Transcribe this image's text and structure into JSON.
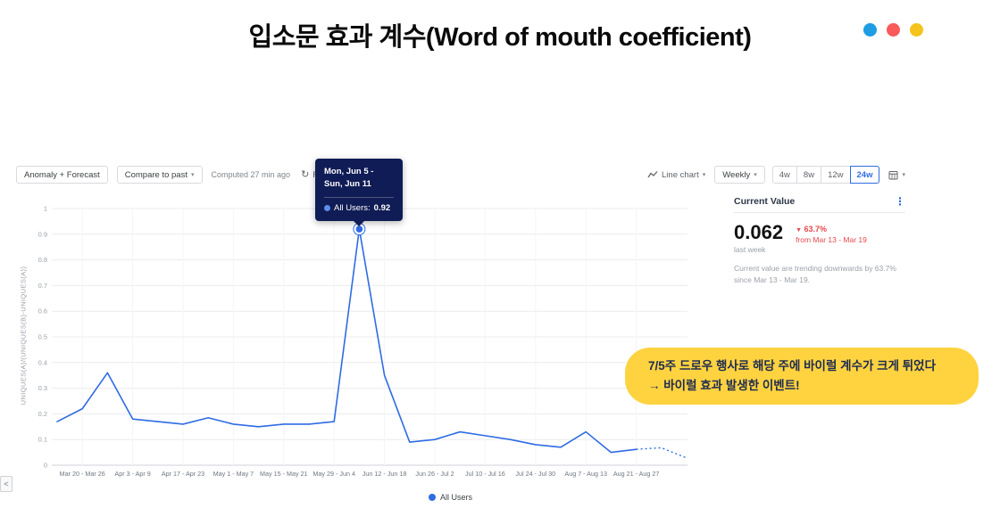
{
  "page": {
    "title": "입소문 효과 계수(Word of mouth coefficient)"
  },
  "decorations": {
    "dots": [
      {
        "name": "blue-dot",
        "color": "#1e9de3"
      },
      {
        "name": "red-dot",
        "color": "#fa5a5a"
      },
      {
        "name": "yellow-dot",
        "color": "#f4c41c"
      }
    ]
  },
  "toolbar": {
    "anomaly_forecast_label": "Anomaly + Forecast",
    "compare_to_past_label": "Compare to past",
    "computed_status": "Computed 27 min ago",
    "refresh_label": "Refresh"
  },
  "chart_controls": {
    "chart_type_label": "Line chart",
    "granularity_label": "Weekly",
    "ranges": [
      "4w",
      "8w",
      "12w",
      "24w"
    ],
    "selected_range": "24w"
  },
  "tooltip": {
    "date_line1": "Mon, Jun 5 -",
    "date_line2": "Sun, Jun 11",
    "series_label": "All Users:",
    "value": "0.92"
  },
  "legend": {
    "label": "All Users"
  },
  "current_value_panel": {
    "title": "Current Value",
    "value": "0.062",
    "period": "last week",
    "change_direction": "down",
    "change": "63.7%",
    "change_from": "from Mar 13 - Mar 19",
    "description": "Current value are trending downwards by 63.7% since Mar 13 - Mar 19."
  },
  "annotation": {
    "line1": "7/5주 드로우 행사로 해당 주에 바이럴 계수가 크게 튀었다",
    "line2": "→ 바이럴 효과 발생한 이벤트!"
  },
  "nav": {
    "back_label": "<"
  },
  "colors": {
    "line": "#2f6be4",
    "selected_range": "#2f6be4",
    "negative": "#e5484d",
    "annotation_bg": "#ffd340",
    "tooltip_bg": "#101c55"
  },
  "chart_data": {
    "type": "line",
    "title": "입소문 효과 계수(Word of mouth coefficient)",
    "xlabel": "",
    "ylabel": "UNIQUES(A)/(UNIQUES(B)-UNIQUES(A))",
    "ylim": [
      0,
      1
    ],
    "yticks": [
      0,
      0.1,
      0.2,
      0.3,
      0.4,
      0.5,
      0.6,
      0.7,
      0.8,
      0.9,
      1
    ],
    "grid": true,
    "legend_position": "bottom",
    "granularity": "weekly",
    "x_weeks": [
      "Mar 13 - Mar 19",
      "Mar 20 - Mar 26",
      "Mar 27 - Apr 2",
      "Apr 3 - Apr 9",
      "Apr 10 - Apr 16",
      "Apr 17 - Apr 23",
      "Apr 24 - Apr 30",
      "May 1 - May 7",
      "May 8 - May 14",
      "May 15 - May 21",
      "May 22 - May 28",
      "May 29 - Jun 4",
      "Jun 5 - Jun 11",
      "Jun 12 - Jun 18",
      "Jun 19 - Jun 25",
      "Jun 26 - Jul 2",
      "Jul 3 - Jul 9",
      "Jul 10 - Jul 16",
      "Jul 17 - Jul 23",
      "Jul 24 - Jul 30",
      "Jul 31 - Aug 6",
      "Aug 7 - Aug 13",
      "Aug 14 - Aug 20",
      "Aug 21 - Aug 27"
    ],
    "x_tick_labels": [
      "Mar 20 - Mar 26",
      "Apr 3 - Apr 9",
      "Apr 17 - Apr 23",
      "May 1 - May 7",
      "May 15 - May 21",
      "May 29 - Jun 4",
      "Jun 12 - Jun 18",
      "Jun 26 - Jul 2",
      "Jul 10 - Jul 16",
      "Jul 24 - Jul 30",
      "Aug 7 - Aug 13",
      "Aug 21 - Aug 27"
    ],
    "series": [
      {
        "name": "All Users",
        "color": "#2f6be4",
        "values": [
          0.17,
          0.22,
          0.36,
          0.18,
          0.17,
          0.16,
          0.185,
          0.16,
          0.15,
          0.16,
          0.16,
          0.17,
          0.92,
          0.35,
          0.09,
          0.1,
          0.13,
          0.115,
          0.1,
          0.08,
          0.07,
          0.13,
          0.05,
          0.062
        ]
      }
    ],
    "forecast": {
      "style": "dotted",
      "values": [
        0.068,
        0.028
      ]
    },
    "highlight": {
      "index": 12,
      "week": "Mon, Jun 5 - Sun, Jun 11",
      "value": 0.92
    }
  }
}
